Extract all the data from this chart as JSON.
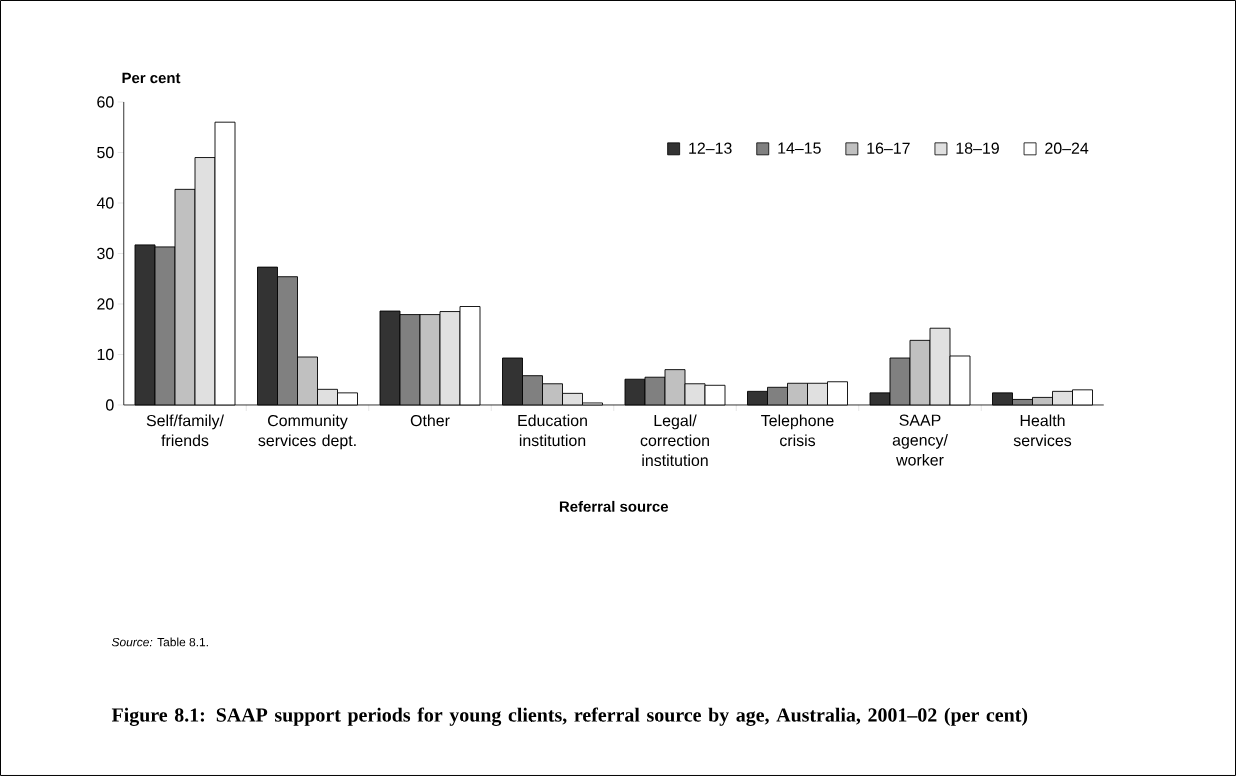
{
  "chart_data": {
    "type": "bar",
    "title": "Figure 8.1: SAAP support periods for young clients, referral source by age, Australia, 2001–02 (per cent)",
    "xlabel": "Referral source",
    "ylabel": "Per cent",
    "annotations": [
      "*Source:* Table 8.1."
    ],
    "categories": [
      "Self/family/ friends",
      "Community services dept.",
      "Other",
      "Education institution",
      "Legal/ correction institution",
      "Telephone crisis",
      "SAAP agency/ worker",
      "Health services"
    ],
    "series": [
      {
        "name": "12–13",
        "color": "#333333",
        "values": [
          31.7,
          27.3,
          18.6,
          9.3,
          5.1,
          2.7,
          2.4,
          2.4
        ]
      },
      {
        "name": "14–15",
        "color": "#808080",
        "values": [
          31.3,
          25.4,
          17.9,
          5.8,
          5.5,
          3.5,
          9.3,
          1.1
        ]
      },
      {
        "name": "16–17",
        "color": "#c0c0c0",
        "values": [
          42.7,
          9.5,
          17.9,
          4.2,
          7.0,
          4.3,
          12.8,
          1.5
        ]
      },
      {
        "name": "18–19",
        "color": "#e0e0e0",
        "values": [
          49.0,
          3.1,
          18.5,
          2.3,
          4.2,
          4.3,
          15.2,
          2.7
        ]
      },
      {
        "name": "20–24",
        "color": "#ffffff",
        "values": [
          56.0,
          2.4,
          19.5,
          0.4,
          3.9,
          4.6,
          9.7,
          3.0
        ]
      }
    ],
    "ylim": [
      0,
      60
    ],
    "yticks": [
      0,
      10,
      20,
      30,
      40,
      50,
      60
    ],
    "legend": "top right"
  }
}
